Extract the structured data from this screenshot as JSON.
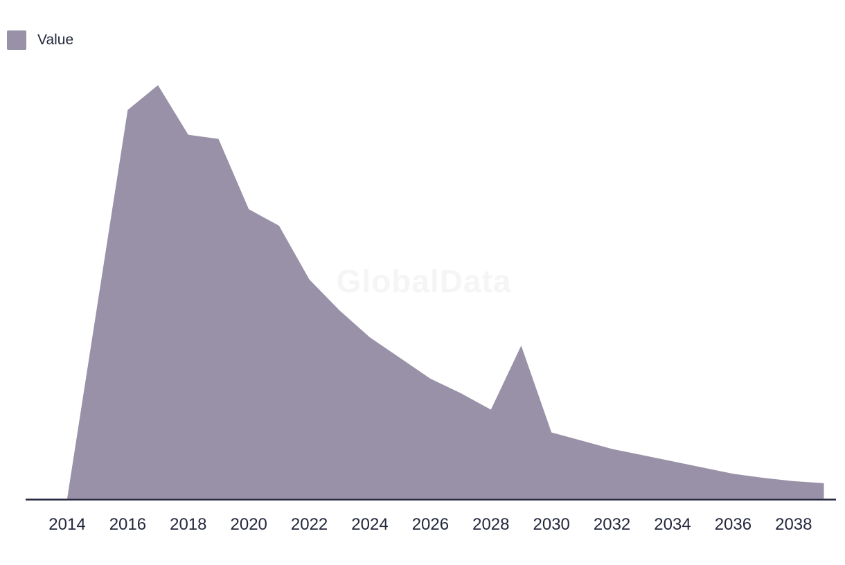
{
  "legend": {
    "label": "Value",
    "swatch_color": "#9991a8"
  },
  "watermark": {
    "text": "GlobalData",
    "color": "#f5f5f6"
  },
  "colors": {
    "area_fill": "#9991a8",
    "axis_line": "#23263c",
    "tick_text": "#23283c",
    "background": "#ffffff"
  },
  "chart_data": {
    "type": "area",
    "title": "",
    "xlabel": "",
    "ylabel": "",
    "units": "relative index (2017 peak = 100); no y-axis shown",
    "grid": false,
    "legend_position": "top-left",
    "x_ticks": [
      2014,
      2016,
      2018,
      2020,
      2022,
      2024,
      2026,
      2028,
      2030,
      2032,
      2034,
      2036,
      2038
    ],
    "x_range": [
      2014,
      2039
    ],
    "ylim": [
      0,
      100
    ],
    "series": [
      {
        "name": "Value",
        "x": [
          2014,
          2015,
          2016,
          2017,
          2018,
          2019,
          2020,
          2021,
          2022,
          2023,
          2024,
          2025,
          2026,
          2027,
          2028,
          2029,
          2030,
          2031,
          2032,
          2033,
          2034,
          2035,
          2036,
          2037,
          2038,
          2039
        ],
        "values": [
          0,
          47,
          94,
          100,
          88,
          87,
          70,
          66,
          53,
          45.5,
          39,
          34,
          29,
          25.5,
          21.5,
          37,
          16,
          14,
          12,
          10.5,
          9,
          7.5,
          6,
          5,
          4.2,
          3.7
        ]
      }
    ],
    "annotations": [
      "sharp one-year spike at 2029 interrupting the long decline"
    ]
  }
}
